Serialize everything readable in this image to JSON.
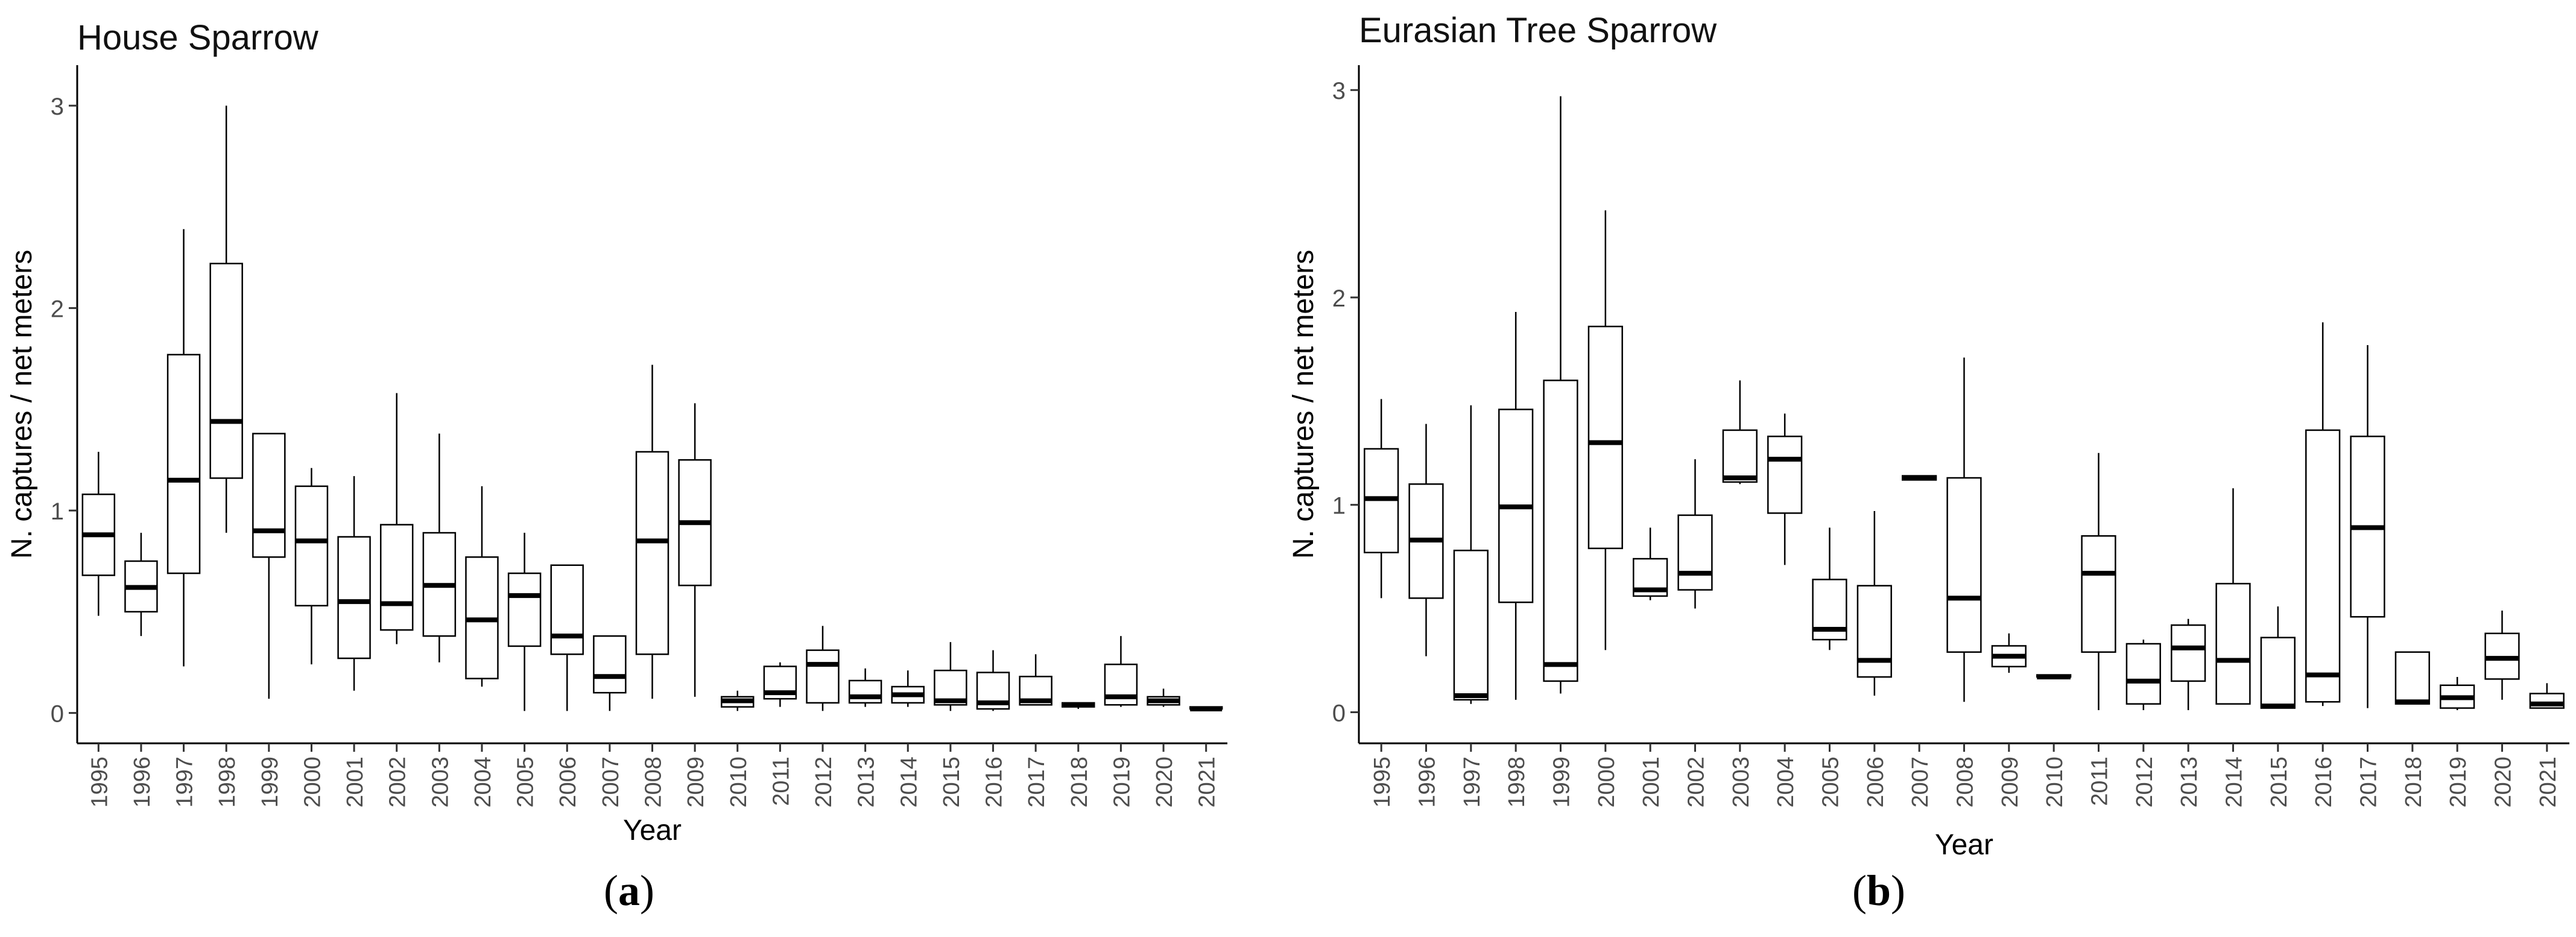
{
  "chart_data": [
    {
      "type": "boxplot",
      "panel": "a",
      "title": "House Sparrow",
      "xlabel": "Year",
      "ylabel": "N. captures / net meters",
      "ylim": [
        -0.15,
        3.2
      ],
      "yticks": [
        0,
        1,
        2,
        3
      ],
      "categories": [
        "1995",
        "1996",
        "1997",
        "1998",
        "1999",
        "2000",
        "2001",
        "2002",
        "2003",
        "2004",
        "2005",
        "2006",
        "2007",
        "2008",
        "2009",
        "2010",
        "2011",
        "2012",
        "2013",
        "2014",
        "2015",
        "2016",
        "2017",
        "2018",
        "2019",
        "2020",
        "2021"
      ],
      "boxes": [
        {
          "year": "1995",
          "min": 0.48,
          "q1": 0.68,
          "median": 0.88,
          "q3": 1.08,
          "max": 1.29
        },
        {
          "year": "1996",
          "min": 0.38,
          "q1": 0.5,
          "median": 0.62,
          "q3": 0.75,
          "max": 0.89
        },
        {
          "year": "1997",
          "min": 0.23,
          "q1": 0.69,
          "median": 1.15,
          "q3": 1.77,
          "max": 2.39
        },
        {
          "year": "1998",
          "min": 0.89,
          "q1": 1.16,
          "median": 1.44,
          "q3": 2.22,
          "max": 3.0
        },
        {
          "year": "1999",
          "min": 0.07,
          "q1": 0.77,
          "median": 0.9,
          "q3": 1.38,
          "max": 1.38
        },
        {
          "year": "2000",
          "min": 0.24,
          "q1": 0.53,
          "median": 0.85,
          "q3": 1.12,
          "max": 1.21
        },
        {
          "year": "2001",
          "min": 0.11,
          "q1": 0.27,
          "median": 0.55,
          "q3": 0.87,
          "max": 1.17
        },
        {
          "year": "2002",
          "min": 0.34,
          "q1": 0.41,
          "median": 0.54,
          "q3": 0.93,
          "max": 1.58
        },
        {
          "year": "2003",
          "min": 0.25,
          "q1": 0.38,
          "median": 0.63,
          "q3": 0.89,
          "max": 1.38
        },
        {
          "year": "2004",
          "min": 0.13,
          "q1": 0.17,
          "median": 0.46,
          "q3": 0.77,
          "max": 1.12
        },
        {
          "year": "2005",
          "min": 0.01,
          "q1": 0.33,
          "median": 0.58,
          "q3": 0.69,
          "max": 0.89
        },
        {
          "year": "2006",
          "min": 0.01,
          "q1": 0.29,
          "median": 0.38,
          "q3": 0.73,
          "max": 0.73
        },
        {
          "year": "2007",
          "min": 0.01,
          "q1": 0.1,
          "median": 0.18,
          "q3": 0.38,
          "max": 0.38
        },
        {
          "year": "2008",
          "min": 0.07,
          "q1": 0.29,
          "median": 0.85,
          "q3": 1.29,
          "max": 1.72
        },
        {
          "year": "2009",
          "min": 0.08,
          "q1": 0.63,
          "median": 0.94,
          "q3": 1.25,
          "max": 1.53
        },
        {
          "year": "2010",
          "min": 0.01,
          "q1": 0.03,
          "median": 0.06,
          "q3": 0.08,
          "max": 0.11
        },
        {
          "year": "2011",
          "min": 0.03,
          "q1": 0.07,
          "median": 0.1,
          "q3": 0.23,
          "max": 0.25
        },
        {
          "year": "2012",
          "min": 0.01,
          "q1": 0.05,
          "median": 0.24,
          "q3": 0.31,
          "max": 0.43
        },
        {
          "year": "2013",
          "min": 0.03,
          "q1": 0.05,
          "median": 0.08,
          "q3": 0.16,
          "max": 0.22
        },
        {
          "year": "2014",
          "min": 0.03,
          "q1": 0.05,
          "median": 0.09,
          "q3": 0.13,
          "max": 0.21
        },
        {
          "year": "2015",
          "min": 0.01,
          "q1": 0.04,
          "median": 0.06,
          "q3": 0.21,
          "max": 0.35
        },
        {
          "year": "2016",
          "min": 0.01,
          "q1": 0.02,
          "median": 0.05,
          "q3": 0.2,
          "max": 0.31
        },
        {
          "year": "2017",
          "min": 0.04,
          "q1": 0.04,
          "median": 0.06,
          "q3": 0.18,
          "max": 0.29
        },
        {
          "year": "2018",
          "min": 0.02,
          "q1": 0.03,
          "median": 0.04,
          "q3": 0.05,
          "max": 0.05
        },
        {
          "year": "2019",
          "min": 0.03,
          "q1": 0.04,
          "median": 0.08,
          "q3": 0.24,
          "max": 0.38
        },
        {
          "year": "2020",
          "min": 0.03,
          "q1": 0.04,
          "median": 0.06,
          "q3": 0.08,
          "max": 0.12
        },
        {
          "year": "2021",
          "min": 0.02,
          "q1": 0.02,
          "median": 0.02,
          "q3": 0.03,
          "max": 0.03
        }
      ]
    },
    {
      "type": "boxplot",
      "panel": "b",
      "title": "Eurasian Tree Sparrow",
      "xlabel": "Year",
      "ylabel": "N. captures / net meters",
      "ylim": [
        -0.15,
        3.12
      ],
      "yticks": [
        0,
        1,
        2,
        3
      ],
      "categories": [
        "1995",
        "1996",
        "1997",
        "1998",
        "1999",
        "2000",
        "2001",
        "2002",
        "2003",
        "2004",
        "2005",
        "2006",
        "2007",
        "2008",
        "2009",
        "2010",
        "2011",
        "2012",
        "2013",
        "2014",
        "2015",
        "2016",
        "2017",
        "2018",
        "2019",
        "2020",
        "2021"
      ],
      "boxes": [
        {
          "year": "1995",
          "min": 0.55,
          "q1": 0.77,
          "median": 1.03,
          "q3": 1.27,
          "max": 1.51
        },
        {
          "year": "1996",
          "min": 0.27,
          "q1": 0.55,
          "median": 0.83,
          "q3": 1.1,
          "max": 1.39
        },
        {
          "year": "1997",
          "min": 0.04,
          "q1": 0.06,
          "median": 0.08,
          "q3": 0.78,
          "max": 1.48
        },
        {
          "year": "1998",
          "min": 0.06,
          "q1": 0.53,
          "median": 0.99,
          "q3": 1.46,
          "max": 1.93
        },
        {
          "year": "1999",
          "min": 0.09,
          "q1": 0.15,
          "median": 0.23,
          "q3": 1.6,
          "max": 2.97
        },
        {
          "year": "2000",
          "min": 0.3,
          "q1": 0.79,
          "median": 1.3,
          "q3": 1.86,
          "max": 2.42
        },
        {
          "year": "2001",
          "min": 0.54,
          "q1": 0.56,
          "median": 0.59,
          "q3": 0.74,
          "max": 0.89
        },
        {
          "year": "2002",
          "min": 0.5,
          "q1": 0.59,
          "median": 0.67,
          "q3": 0.95,
          "max": 1.22
        },
        {
          "year": "2003",
          "min": 1.1,
          "q1": 1.11,
          "median": 1.13,
          "q3": 1.36,
          "max": 1.6
        },
        {
          "year": "2004",
          "min": 0.71,
          "q1": 0.96,
          "median": 1.22,
          "q3": 1.33,
          "max": 1.44
        },
        {
          "year": "2005",
          "min": 0.3,
          "q1": 0.35,
          "median": 0.4,
          "q3": 0.64,
          "max": 0.89
        },
        {
          "year": "2006",
          "min": 0.08,
          "q1": 0.17,
          "median": 0.25,
          "q3": 0.61,
          "max": 0.97
        },
        {
          "year": "2007",
          "min": 1.12,
          "q1": 1.12,
          "median": 1.13,
          "q3": 1.14,
          "max": 1.14
        },
        {
          "year": "2008",
          "min": 0.05,
          "q1": 0.29,
          "median": 0.55,
          "q3": 1.13,
          "max": 1.71
        },
        {
          "year": "2009",
          "min": 0.19,
          "q1": 0.22,
          "median": 0.27,
          "q3": 0.32,
          "max": 0.38
        },
        {
          "year": "2010",
          "min": 0.17,
          "q1": 0.17,
          "median": 0.17,
          "q3": 0.18,
          "max": 0.18
        },
        {
          "year": "2011",
          "min": 0.01,
          "q1": 0.29,
          "median": 0.67,
          "q3": 0.85,
          "max": 1.25
        },
        {
          "year": "2012",
          "min": 0.01,
          "q1": 0.04,
          "median": 0.15,
          "q3": 0.33,
          "max": 0.35
        },
        {
          "year": "2013",
          "min": 0.01,
          "q1": 0.15,
          "median": 0.31,
          "q3": 0.42,
          "max": 0.45
        },
        {
          "year": "2014",
          "min": 0.04,
          "q1": 0.04,
          "median": 0.25,
          "q3": 0.62,
          "max": 1.08
        },
        {
          "year": "2015",
          "min": 0.02,
          "q1": 0.02,
          "median": 0.03,
          "q3": 0.36,
          "max": 0.51
        },
        {
          "year": "2016",
          "min": 0.03,
          "q1": 0.05,
          "median": 0.18,
          "q3": 1.36,
          "max": 1.88
        },
        {
          "year": "2017",
          "min": 0.02,
          "q1": 0.46,
          "median": 0.89,
          "q3": 1.33,
          "max": 1.77
        },
        {
          "year": "2018",
          "min": 0.04,
          "q1": 0.04,
          "median": 0.05,
          "q3": 0.29,
          "max": 0.29
        },
        {
          "year": "2019",
          "min": 0.01,
          "q1": 0.02,
          "median": 0.07,
          "q3": 0.13,
          "max": 0.17
        },
        {
          "year": "2020",
          "min": 0.06,
          "q1": 0.16,
          "median": 0.26,
          "q3": 0.38,
          "max": 0.49
        },
        {
          "year": "2021",
          "min": 0.02,
          "q1": 0.02,
          "median": 0.04,
          "q3": 0.09,
          "max": 0.14
        }
      ]
    }
  ],
  "captions": {
    "a": "a",
    "b": "b"
  }
}
